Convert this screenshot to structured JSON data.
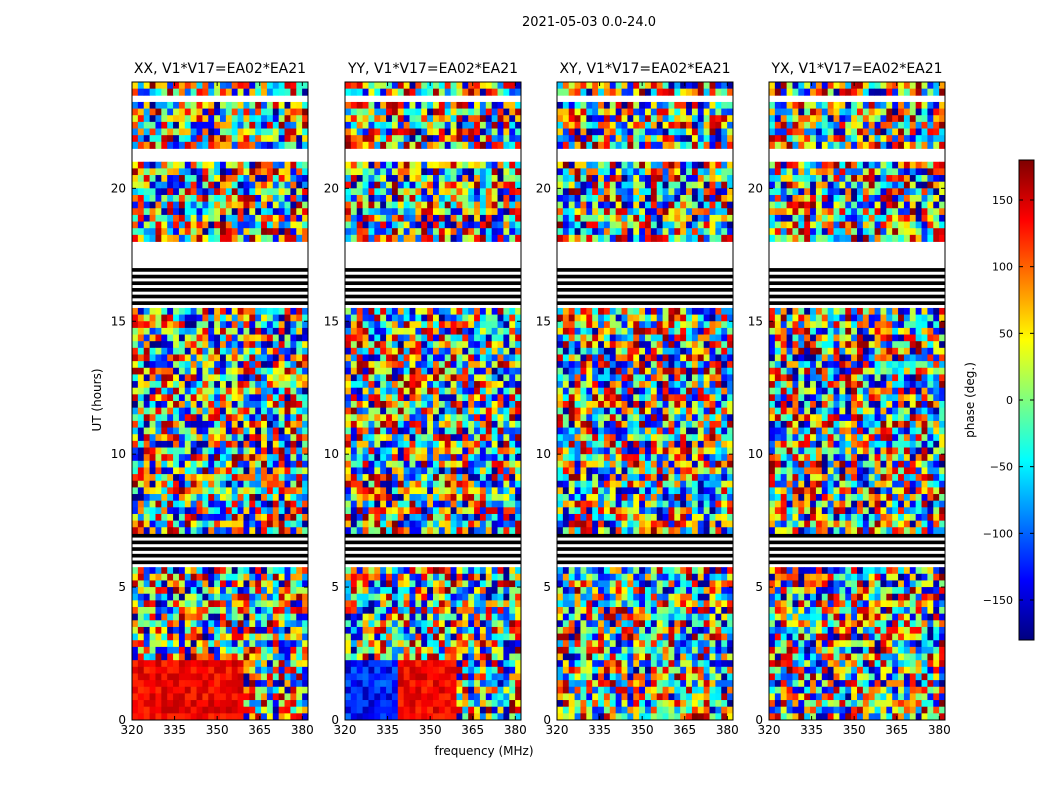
{
  "figure": {
    "suptitle": "2021-05-03 0.0-24.0",
    "xlabel": "frequency (MHz)",
    "ylabel": "UT (hours)"
  },
  "colorbar": {
    "label": "phase (deg.)",
    "range": [
      -180,
      180
    ],
    "ticks": [
      150,
      100,
      50,
      0,
      -50,
      -100,
      -150
    ],
    "tick_labels": [
      "150",
      "100",
      "50",
      "0",
      "−50",
      "−100",
      "−150"
    ],
    "colormap": "jet",
    "colors": [
      "#00007f",
      "#0000ff",
      "#007fff",
      "#00ffff",
      "#7fff7f",
      "#ffff00",
      "#ff7f00",
      "#ff0000",
      "#7f0000"
    ]
  },
  "chart_data": [
    {
      "type": "heatmap",
      "title": "XX, V1*V17=EA02*EA21",
      "x_range": [
        320,
        382
      ],
      "y_range": [
        0,
        24
      ],
      "x_ticks": [
        320,
        335,
        350,
        365,
        380
      ],
      "y_ticks": [
        0,
        5,
        10,
        15,
        20
      ],
      "value": "phase (deg.)"
    },
    {
      "type": "heatmap",
      "title": "YY, V1*V17=EA02*EA21",
      "x_range": [
        320,
        382
      ],
      "y_range": [
        0,
        24
      ],
      "x_ticks": [
        320,
        335,
        350,
        365,
        380
      ],
      "y_ticks": [
        0,
        5,
        10,
        15,
        20
      ],
      "value": "phase (deg.)"
    },
    {
      "type": "heatmap",
      "title": "XY, V1*V17=EA02*EA21",
      "x_range": [
        320,
        382
      ],
      "y_range": [
        0,
        24
      ],
      "x_ticks": [
        320,
        335,
        350,
        365,
        380
      ],
      "y_ticks": [
        0,
        5,
        10,
        15,
        20
      ],
      "value": "phase (deg.)"
    },
    {
      "type": "heatmap",
      "title": "YX, V1*V17=EA02*EA21",
      "x_range": [
        320,
        382
      ],
      "y_range": [
        0,
        24
      ],
      "x_ticks": [
        320,
        335,
        350,
        365,
        380
      ],
      "y_ticks": [
        0,
        5,
        10,
        15,
        20
      ],
      "value": "phase (deg.)"
    }
  ]
}
